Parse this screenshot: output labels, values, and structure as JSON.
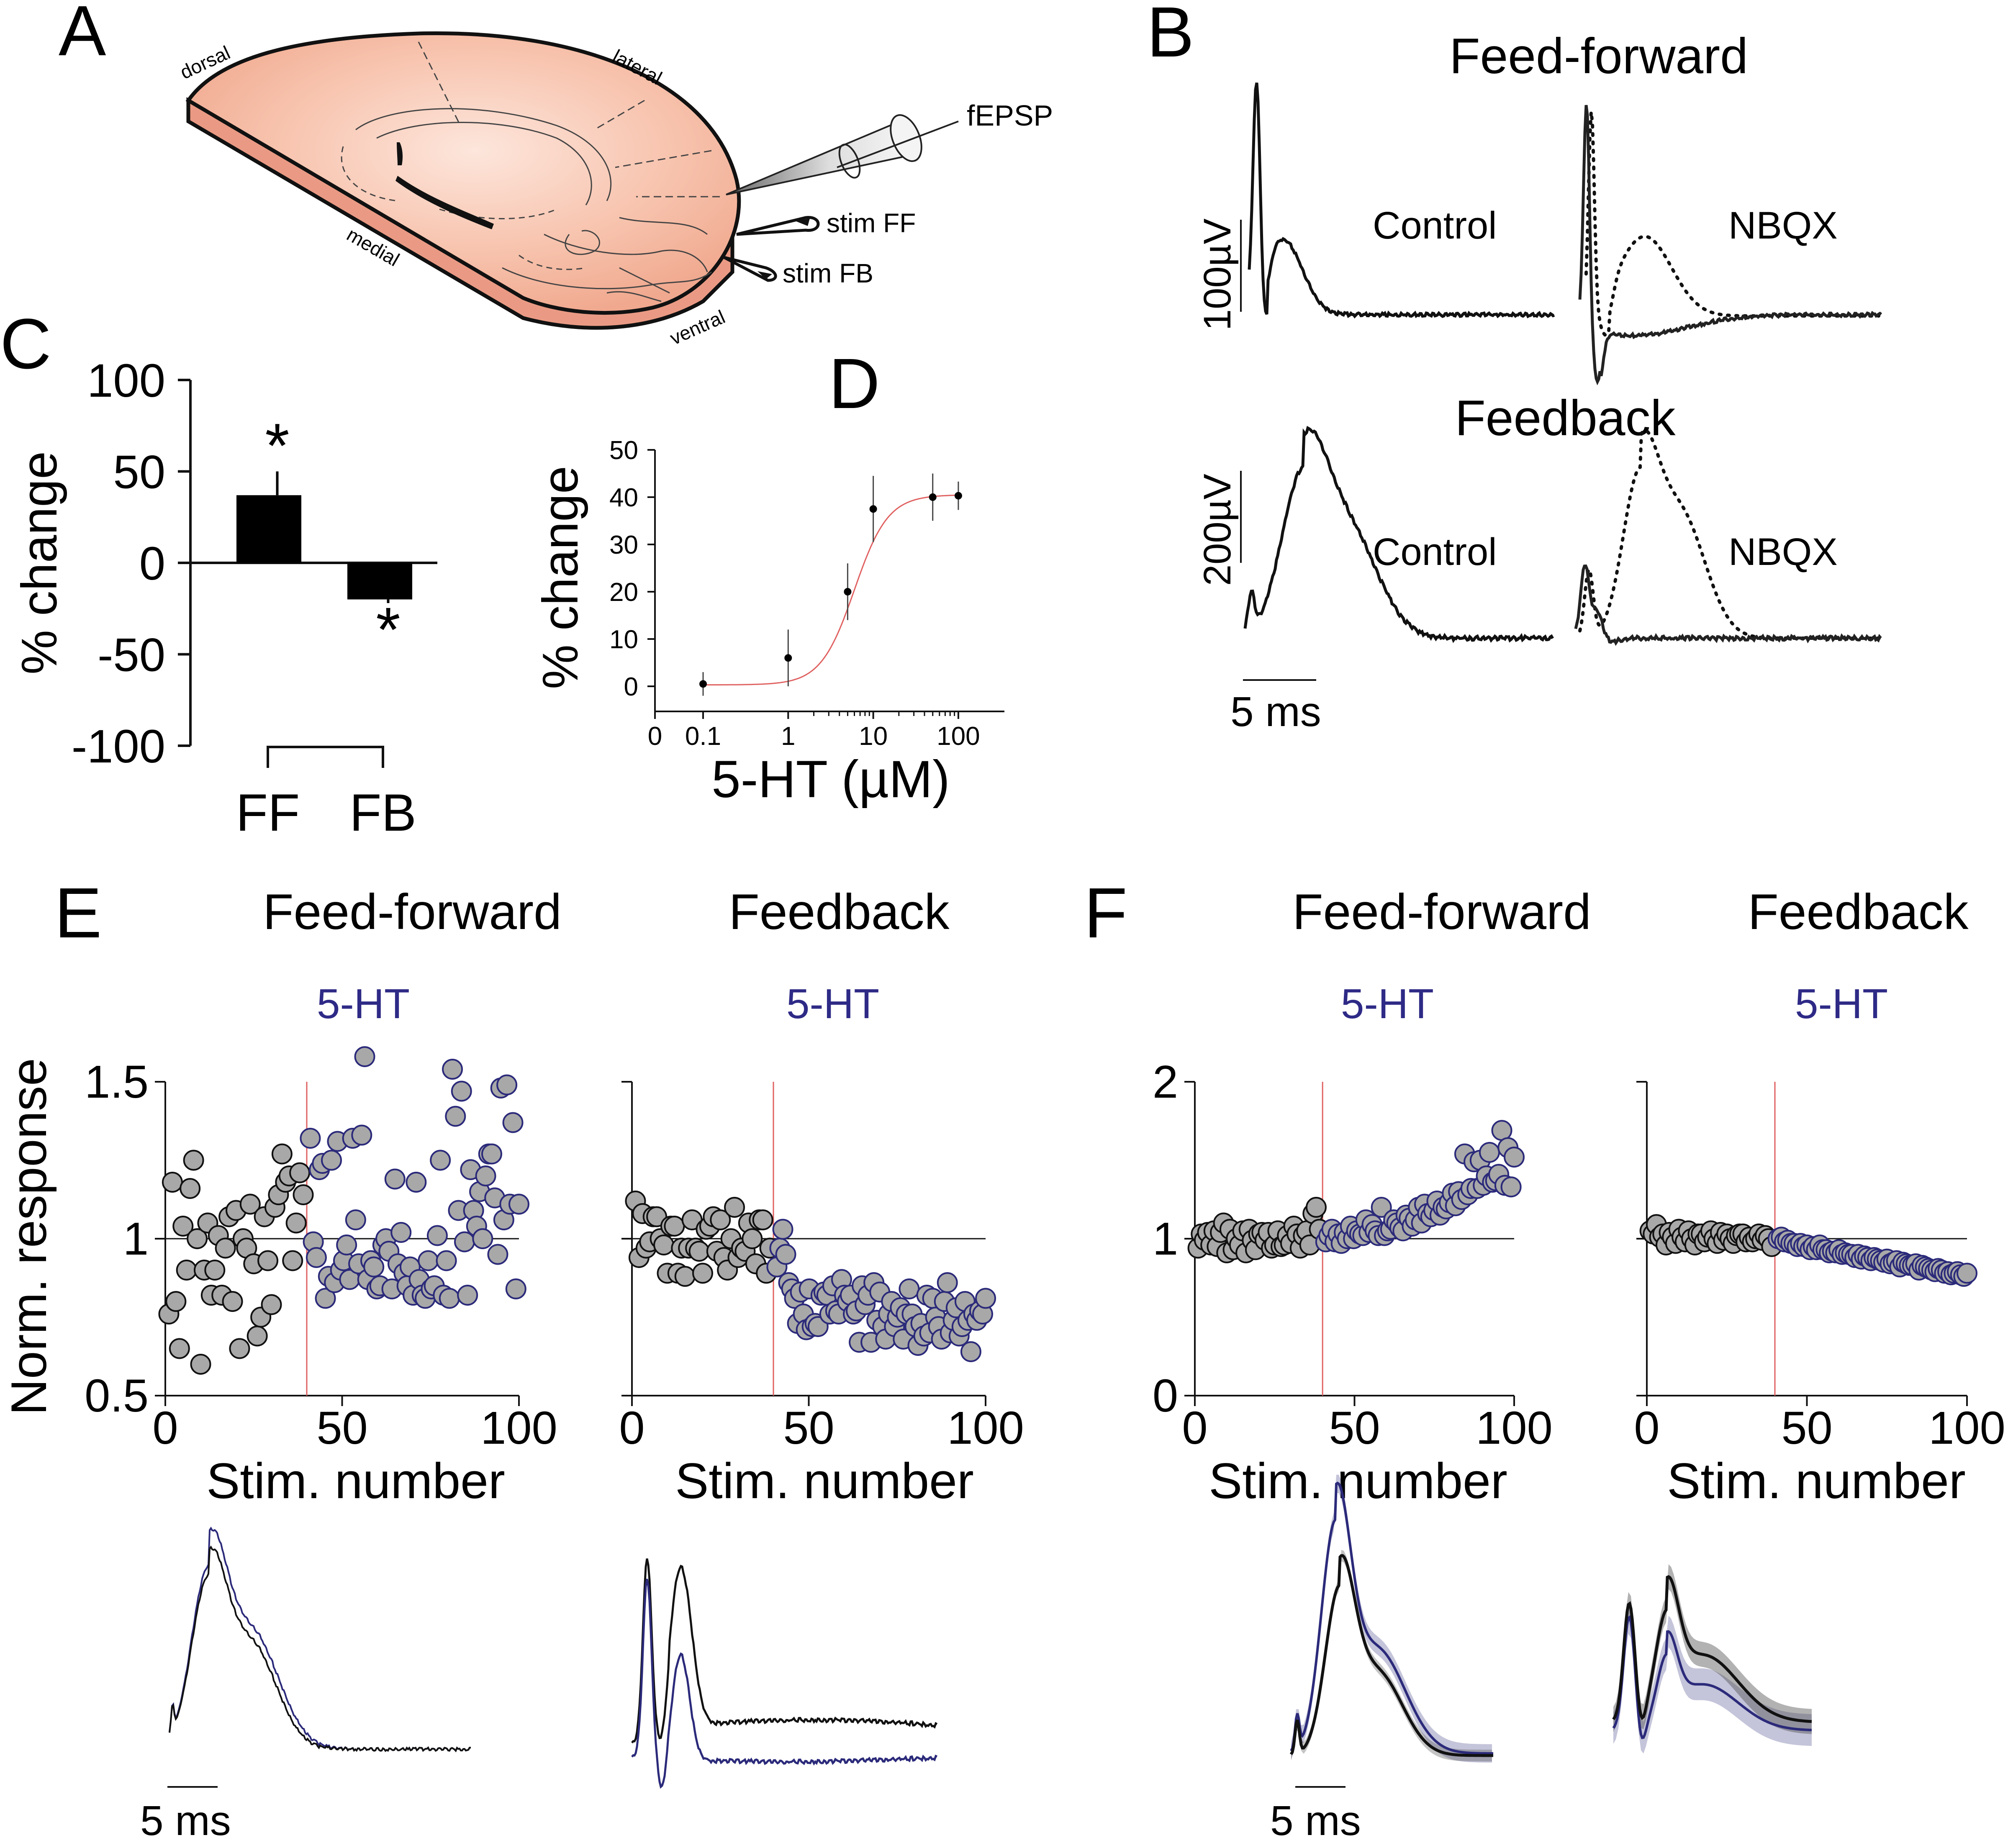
{
  "panels": {
    "A": "A",
    "B": "B",
    "C": "C",
    "D": "D",
    "E": "E",
    "F": "F"
  },
  "diagram_A": {
    "labels": {
      "dorsal": "dorsal",
      "lateral": "lateral",
      "medial": "medial",
      "ventral": "ventral",
      "recording": "fEPSP",
      "stim_ff": "stim FF",
      "stim_fb": "stim FB"
    },
    "colors": {
      "slice_top": "#f4b49c",
      "slice_side": "#ea9a84",
      "slice_light": "#fbe2d8"
    }
  },
  "panel_B": {
    "ff_title": "Feed-forward",
    "fb_title": "Feedback",
    "control": "Control",
    "nbqx": "NBQX",
    "ff_scale": "100µV",
    "fb_scale": "200µV",
    "time_scale": "5 ms"
  },
  "panel_E": {
    "ff_title": "Feed-forward",
    "fb_title": "Feedback",
    "drug": "5-HT",
    "time_scale": "5 ms"
  },
  "panel_F": {
    "ff_title": "Feed-forward",
    "fb_title": "Feedback",
    "drug": "5-HT",
    "time_scale": "5 ms"
  },
  "colors": {
    "control": "#111111",
    "drug": "#2b2a7a",
    "marker_fill": "#a8a8a8",
    "fit": "#e06060",
    "drug_label": "#2e2a86"
  },
  "chart_data": [
    {
      "id": "C",
      "type": "bar",
      "categories": [
        "FF",
        "FB"
      ],
      "values": [
        37,
        -20
      ],
      "errors": [
        13,
        2
      ],
      "annotations": [
        "*",
        "*"
      ],
      "ylabel": "% change",
      "ylim": [
        -100,
        100
      ],
      "yticks": [
        "100",
        "50",
        "0",
        "-50",
        "-100"
      ]
    },
    {
      "id": "D",
      "type": "scatter",
      "xlabel": "5-HT (µM)",
      "ylabel": "% change",
      "x": [
        0.1,
        1,
        5,
        10,
        50,
        100
      ],
      "y": [
        0.5,
        6,
        20,
        37.5,
        40,
        40.3
      ],
      "yerr": [
        2.5,
        6,
        6,
        7,
        5,
        3
      ],
      "fit": {
        "kind": "hill",
        "bottom": 0.3,
        "top": 40.5,
        "ec50": 6,
        "hill": 2.2
      },
      "xticks": [
        "0",
        "0.1",
        "1",
        "10",
        "100"
      ],
      "yticks": [
        "0",
        "10",
        "20",
        "30",
        "40",
        "50"
      ],
      "ylim": [
        0,
        50
      ]
    },
    {
      "id": "E-FF",
      "type": "scatter",
      "title": "Feed-forward",
      "xlabel": "Stim. number",
      "ylabel": "Norm. response",
      "xlim": [
        0,
        100
      ],
      "ylim": [
        0.5,
        1.5
      ],
      "drug_onset": 40,
      "xticks": [
        "0",
        "50",
        "100"
      ],
      "yticks": [
        "0.5",
        "1",
        "1.5"
      ],
      "control_y": [
        0.76,
        1.18,
        0.8,
        0.65,
        1.04,
        0.9,
        1.16,
        1.25,
        1.0,
        0.6,
        0.9,
        1.05,
        0.82,
        0.9,
        1.01,
        0.82,
        0.97,
        1.07,
        0.8,
        1.09,
        0.65,
        1.0,
        0.97,
        1.11,
        0.92,
        0.69,
        0.75,
        1.07,
        0.93,
        0.79,
        1.1,
        1.14,
        1.27,
        1.18,
        1.2,
        0.93,
        1.05,
        1.21,
        1.14
      ],
      "drug_y": [
        1.32,
        0.99,
        0.94,
        1.22,
        1.24,
        0.81,
        0.88,
        1.25,
        0.86,
        1.31,
        0.9,
        0.93,
        0.98,
        0.87,
        1.32,
        1.06,
        0.92,
        1.33,
        1.58,
        0.87,
        0.93,
        0.91,
        0.84,
        0.85,
        0.98,
        1.0,
        0.96,
        0.84,
        1.19,
        0.92,
        1.02,
        0.89,
        0.85,
        0.91,
        0.82,
        1.18,
        0.87,
        0.82,
        0.81,
        0.93,
        0.84,
        0.85,
        1.01,
        1.25,
        0.82,
        0.93,
        0.81,
        1.54,
        1.39,
        1.09,
        1.47,
        0.99,
        0.82,
        1.22,
        1.09,
        1.04,
        1.15,
        1.0,
        1.2,
        1.27,
        1.27,
        1.13,
        0.95,
        1.48,
        1.06,
        1.49,
        1.11,
        1.37,
        0.84,
        1.11
      ]
    },
    {
      "id": "E-FB",
      "type": "scatter",
      "title": "Feedback",
      "xlabel": "Stim. number",
      "ylabel": "",
      "xlim": [
        0,
        100
      ],
      "ylim": [
        0.5,
        1.5
      ],
      "drug_onset": 40,
      "xticks": [
        "0",
        "50",
        "100"
      ],
      "control_y": [
        1.12,
        0.94,
        1.08,
        0.97,
        0.99,
        1.07,
        1.07,
        1.0,
        0.98,
        0.89,
        1.04,
        1.04,
        0.89,
        0.97,
        0.88,
        0.97,
        1.06,
        0.97,
        0.96,
        0.89,
        1.03,
        1.04,
        1.07,
        0.96,
        1.06,
        0.94,
        0.9,
        1.0,
        1.1,
        0.94,
        0.97,
        0.96,
        1.05,
        1.0,
        0.92,
        1.06,
        1.06,
        0.89,
        0.97
      ],
      "drug_y": [
        0.91,
        0.97,
        1.03,
        0.95,
        0.86,
        0.84,
        0.81,
        0.73,
        0.83,
        0.76,
        0.71,
        0.84,
        0.72,
        0.73,
        0.72,
        0.82,
        0.83,
        0.82,
        0.76,
        0.85,
        0.77,
        0.76,
        0.87,
        0.82,
        0.8,
        0.82,
        0.76,
        0.77,
        0.67,
        0.85,
        0.79,
        0.82,
        0.67,
        0.86,
        0.74,
        0.83,
        0.72,
        0.68,
        0.76,
        0.8,
        0.72,
        0.75,
        0.78,
        0.68,
        0.76,
        0.84,
        0.76,
        0.72,
        0.66,
        0.73,
        0.69,
        0.82,
        0.7,
        0.81,
        0.75,
        0.72,
        0.68,
        0.8,
        0.86,
        0.7,
        0.74,
        0.78,
        0.69,
        0.72,
        0.8,
        0.74,
        0.64,
        0.76,
        0.74,
        0.77,
        0.76,
        0.81
      ]
    },
    {
      "id": "F-FF",
      "type": "scatter",
      "title": "Feed-forward",
      "xlabel": "Stim. number",
      "ylabel": "",
      "xlim": [
        0,
        100
      ],
      "ylim": [
        0,
        2
      ],
      "drug_onset": 40,
      "xticks": [
        "0",
        "50",
        "100"
      ],
      "yticks": [
        "0",
        "1",
        "2"
      ],
      "control_y": [
        0.94,
        1.03,
        0.99,
        1.04,
        0.96,
        1.05,
        0.95,
        1.04,
        1.1,
        0.91,
        1.06,
        0.93,
        1.0,
        0.96,
        1.05,
        0.91,
        1.06,
        0.99,
        0.93,
        1.03,
        1.04,
        0.99,
        1.04,
        0.94,
        0.96,
        1.05,
        0.95,
        0.96,
        1.02,
        0.97,
        1.08,
        1.03,
        0.94,
        1.02,
        1.05,
        0.96,
        1.16,
        1.2,
        1.06
      ],
      "drug_y": [
        0.98,
        1.02,
        1.06,
        0.98,
        1.03,
        0.97,
        1.04,
        1.0,
        1.08,
        1.0,
        1.05,
        1.03,
        1.02,
        1.12,
        1.04,
        1.09,
        1.05,
        1.02,
        1.2,
        1.02,
        1.05,
        1.06,
        1.12,
        1.1,
        1.07,
        1.05,
        1.15,
        1.13,
        1.08,
        1.12,
        1.2,
        1.1,
        1.22,
        1.16,
        1.14,
        1.18,
        1.24,
        1.15,
        1.2,
        1.19,
        1.23,
        1.29,
        1.21,
        1.3,
        1.25,
        1.54,
        1.28,
        1.32,
        1.49,
        1.32,
        1.5,
        1.34,
        1.4,
        1.55,
        1.36,
        1.37,
        1.41,
        1.69,
        1.34,
        1.58,
        1.33,
        1.52
      ]
    },
    {
      "id": "F-FB",
      "type": "scatter",
      "title": "Feedback",
      "xlabel": "Stim. number",
      "ylabel": "",
      "xlim": [
        0,
        100
      ],
      "ylim": [
        0,
        2
      ],
      "drug_onset": 40,
      "xticks": [
        "0",
        "50",
        "100"
      ],
      "control_y": [
        1.05,
        1.03,
        1.09,
        1.01,
        1.03,
        0.96,
        1.04,
        1.01,
        0.97,
        1.06,
        1.01,
        0.98,
        1.05,
        1.0,
        0.96,
        1.03,
        1.03,
        0.98,
        1.01,
        1.05,
        1.0,
        0.97,
        1.04,
        0.99,
        1.03,
        1.0,
        0.97,
        1.02,
        1.03,
        1.03,
        0.98,
        1.01,
        0.98,
        1.0,
        1.03,
        0.99,
        1.02,
        1.0,
        0.95
      ],
      "drug_y": [
        1.0,
        1.01,
        0.98,
        0.99,
        0.97,
        0.97,
        0.95,
        0.97,
        0.95,
        0.96,
        0.93,
        0.95,
        0.93,
        0.96,
        0.93,
        0.93,
        0.91,
        0.92,
        0.91,
        0.93,
        0.9,
        0.91,
        0.9,
        0.9,
        0.88,
        0.9,
        0.87,
        0.89,
        0.88,
        0.86,
        0.88,
        0.87,
        0.86,
        0.85,
        0.87,
        0.84,
        0.85,
        0.86,
        0.82,
        0.85,
        0.84,
        0.83,
        0.83,
        0.84,
        0.8,
        0.83,
        0.82,
        0.81,
        0.8,
        0.79,
        0.81,
        0.8,
        0.78,
        0.79,
        0.77,
        0.78,
        0.79,
        0.77,
        0.76,
        0.78
      ]
    }
  ]
}
